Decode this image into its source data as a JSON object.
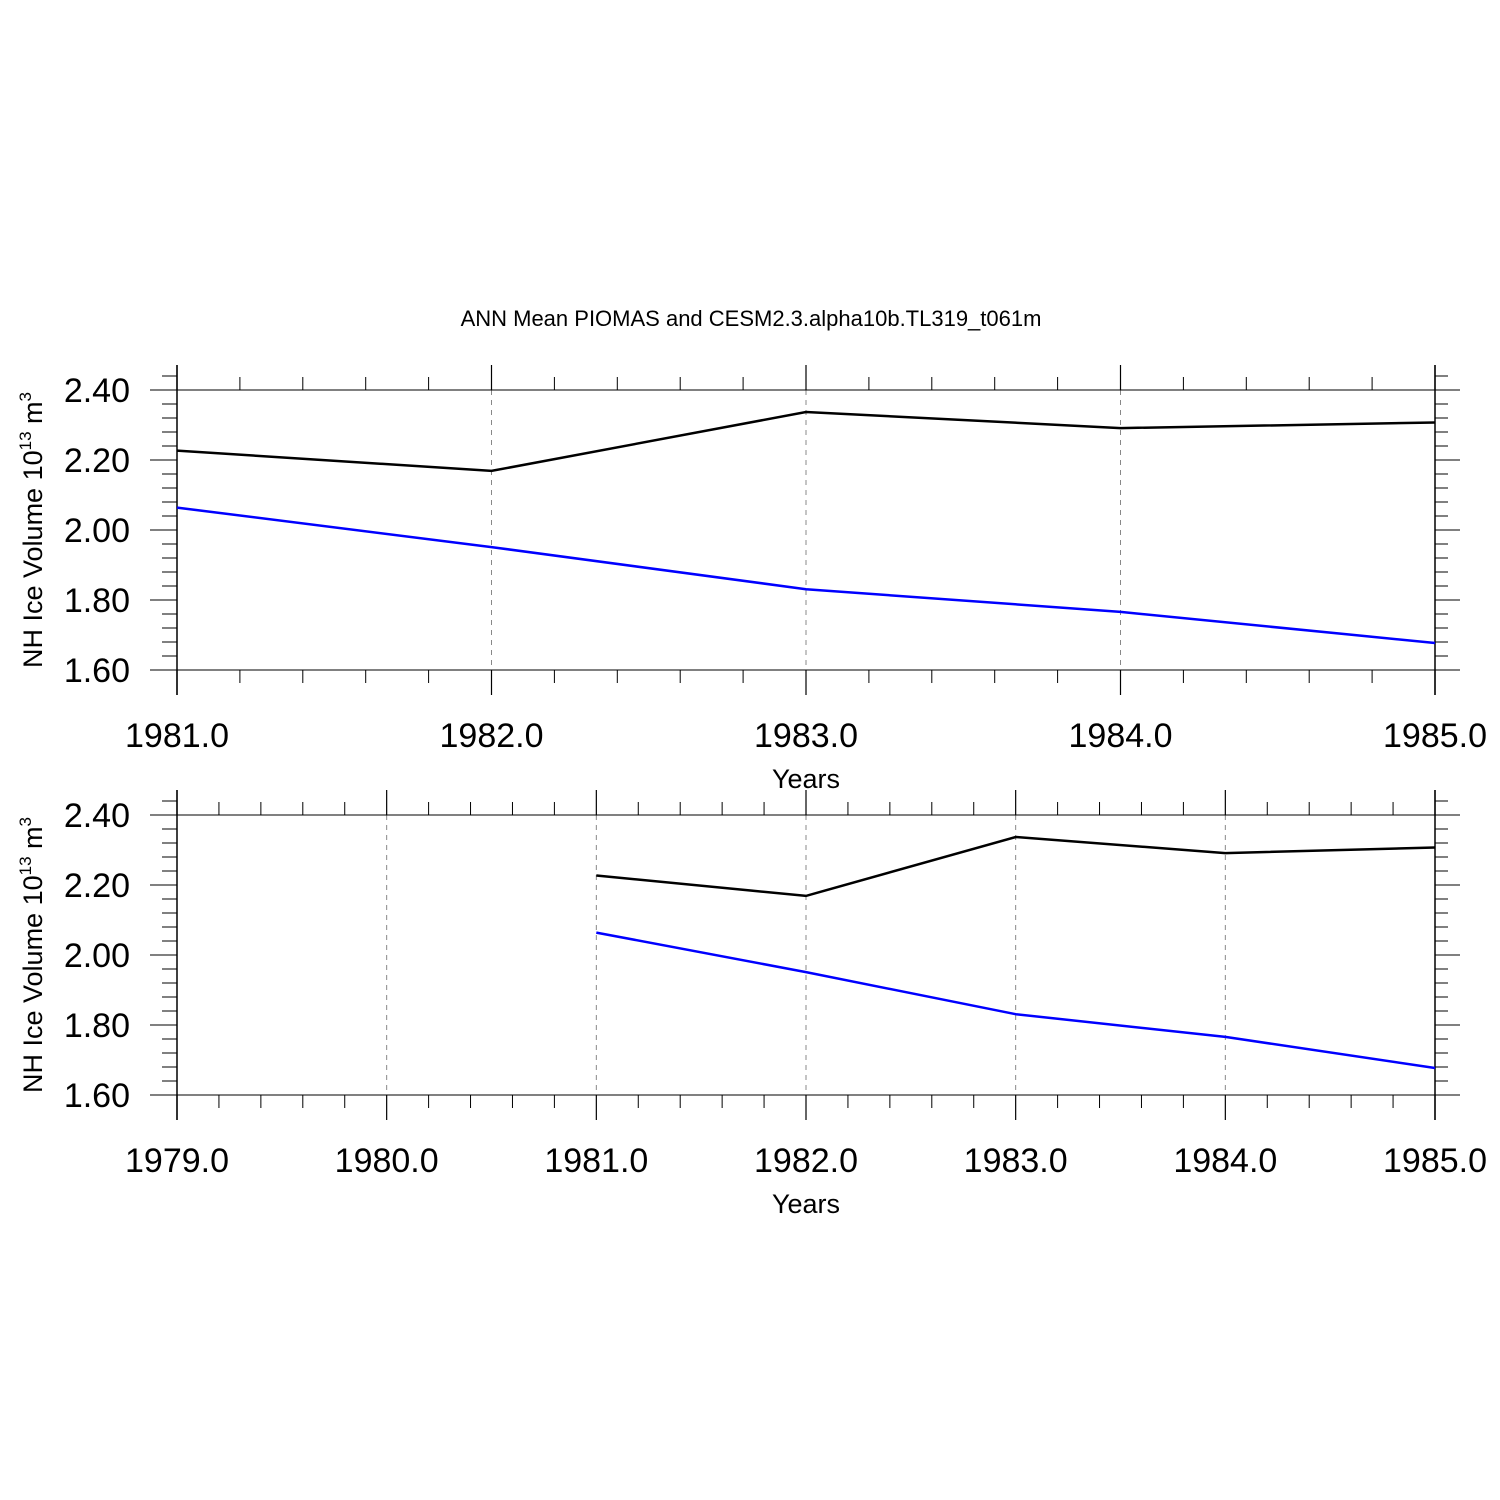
{
  "title": "ANN Mean PIOMAS and CESM2.3.alpha10b.TL319_t061m",
  "colors": {
    "series_1": "#000000",
    "series_2": "#0000ff",
    "axis": "#000000",
    "grid": "#888888"
  },
  "chart_data": [
    {
      "type": "line",
      "xlabel": "Years",
      "ylabel_main": "NH Ice Volume 10",
      "ylabel_exp1": "13",
      "ylabel_unit": " m",
      "ylabel_exp2": "3",
      "xlim": [
        1981.0,
        1985.0
      ],
      "ylim": [
        1.6,
        2.47
      ],
      "xticks": [
        1981.0,
        1982.0,
        1983.0,
        1984.0,
        1985.0
      ],
      "xtick_labels": [
        "1981.0",
        "1982.0",
        "1983.0",
        "1984.0",
        "1985.0"
      ],
      "yticks": [
        1.6,
        1.8,
        2.0,
        2.2,
        2.4
      ],
      "ytick_labels": [
        "1.60",
        "1.80",
        "2.00",
        "2.20",
        "2.40"
      ],
      "grid": "vertical dashed at x ticks",
      "series": [
        {
          "x": [
            1981.0,
            1982.0,
            1983.0,
            1984.0,
            1985.0
          ],
          "values": [
            2.227,
            2.169,
            2.337,
            2.291,
            2.307
          ],
          "color": "#000000"
        },
        {
          "x": [
            1981.0,
            1982.0,
            1983.0,
            1984.0,
            1985.0
          ],
          "values": [
            2.064,
            1.951,
            1.831,
            1.766,
            1.677
          ],
          "color": "#0000ff"
        }
      ]
    },
    {
      "type": "line",
      "xlabel": "Years",
      "ylabel_main": "NH Ice Volume 10",
      "ylabel_exp1": "13",
      "ylabel_unit": " m",
      "ylabel_exp2": "3",
      "xlim": [
        1979.0,
        1985.0
      ],
      "ylim": [
        1.6,
        2.47
      ],
      "xticks": [
        1979.0,
        1980.0,
        1981.0,
        1982.0,
        1983.0,
        1984.0,
        1985.0
      ],
      "xtick_labels": [
        "1979.0",
        "1980.0",
        "1981.0",
        "1982.0",
        "1983.0",
        "1984.0",
        "1985.0"
      ],
      "yticks": [
        1.6,
        1.8,
        2.0,
        2.2,
        2.4
      ],
      "ytick_labels": [
        "1.60",
        "1.80",
        "2.00",
        "2.20",
        "2.40"
      ],
      "grid": "vertical dashed at x ticks",
      "series": [
        {
          "x": [
            1981.0,
            1982.0,
            1983.0,
            1984.0,
            1985.0
          ],
          "values": [
            2.227,
            2.169,
            2.337,
            2.291,
            2.307
          ],
          "color": "#000000"
        },
        {
          "x": [
            1981.0,
            1982.0,
            1983.0,
            1984.0,
            1985.0
          ],
          "values": [
            2.064,
            1.951,
            1.831,
            1.766,
            1.677
          ],
          "color": "#0000ff"
        }
      ]
    }
  ]
}
